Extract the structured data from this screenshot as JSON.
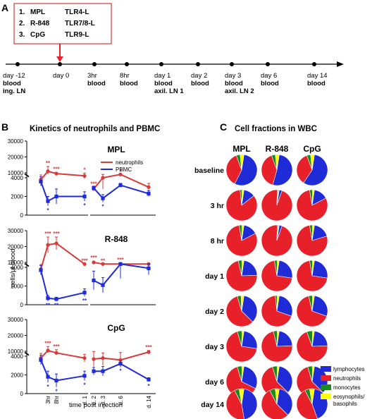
{
  "panels": {
    "a": "A",
    "b": "B",
    "c": "C"
  },
  "panel_a": {
    "agonists": [
      {
        "num": "1.",
        "drug": "MPL",
        "receptor": "TLR4-L"
      },
      {
        "num": "2.",
        "drug": "R-848",
        "receptor": "TLR7/8-L"
      },
      {
        "num": "3.",
        "drug": "CpG",
        "receptor": "TLR9-L"
      }
    ],
    "timeline": [
      {
        "time": "day -12",
        "sample": "blood",
        "extra": "ing. LN"
      },
      {
        "time": "day 0",
        "sample": "",
        "extra": ""
      },
      {
        "time": "3hr",
        "sample": "blood",
        "extra": ""
      },
      {
        "time": "8hr",
        "sample": "blood",
        "extra": ""
      },
      {
        "time": "day 1",
        "sample": "blood",
        "extra": "axil. LN 1"
      },
      {
        "time": "day 2",
        "sample": "blood",
        "extra": ""
      },
      {
        "time": "day 3",
        "sample": "blood",
        "extra": "axil. LN 2"
      },
      {
        "time": "day 6",
        "sample": "blood",
        "extra": ""
      },
      {
        "time": "day 14",
        "sample": "blood",
        "extra": ""
      }
    ]
  },
  "panel_b": {
    "title": "Kinetics of neutrophils and PBMC",
    "ylabel": "cells/µl blood",
    "xlabel": "time post injection",
    "legend": {
      "neutrophils": "neutrophils",
      "pbmc": "PBMC"
    },
    "colors": {
      "neutrophils": "#d93a3a",
      "pbmc": "#1f2bd6"
    }
  },
  "chart_data": [
    {
      "type": "line",
      "title": "MPL",
      "xlabel": "time post injection",
      "ylabel": "cells/µl blood",
      "x": [
        "base",
        "3hr",
        "8hr",
        "d. 1",
        "d. 2",
        "d. 3",
        "d. 6",
        "d. 14"
      ],
      "upper_ticks": [
        "10000",
        "20000",
        "30000"
      ],
      "lower_ticks": [
        "0",
        "2000",
        "4000"
      ],
      "series": [
        {
          "name": "neutrophils",
          "values": [
            3800,
            11000,
            9500,
            4200,
            2800,
            4000,
            5200,
            3000
          ],
          "errors": [
            500,
            3000,
            800,
            300,
            200,
            1200,
            1000,
            400
          ],
          "marks": [
            "",
            "**",
            "***",
            "*",
            "***",
            "",
            "*",
            ""
          ]
        },
        {
          "name": "PBMC",
          "values": [
            3600,
            1500,
            2000,
            2000,
            2900,
            1800,
            3200,
            2300
          ],
          "errors": [
            500,
            500,
            800,
            500,
            200,
            400,
            200,
            300
          ],
          "marks": [
            "",
            "*",
            "",
            "*",
            "",
            "*",
            "",
            ""
          ]
        }
      ]
    },
    {
      "type": "line",
      "title": "R-848",
      "xlabel": "time post injection",
      "ylabel": "cells/µl blood",
      "x": [
        "base",
        "3hr",
        "8hr",
        "d. 1",
        "d. 2",
        "d. 3",
        "d. 6",
        "d. 14"
      ],
      "upper_ticks": [
        "10000",
        "20000",
        "30000"
      ],
      "lower_ticks": [
        "0",
        "2000",
        "4000"
      ],
      "series": [
        {
          "name": "neutrophils",
          "values": [
            3800,
            21000,
            22000,
            8000,
            10000,
            7500,
            8000,
            5000
          ],
          "errors": [
            500,
            5000,
            4000,
            600,
            800,
            700,
            1500,
            800
          ],
          "marks": [
            "",
            "***",
            "***",
            "***",
            "***",
            "**",
            "***",
            ""
          ]
        },
        {
          "name": "PBMC",
          "values": [
            3700,
            700,
            600,
            1300,
            2600,
            2100,
            4800,
            3900
          ],
          "errors": [
            500,
            300,
            200,
            400,
            1000,
            800,
            2000,
            700
          ],
          "marks": [
            "",
            "**",
            "**",
            "**",
            "",
            "",
            "",
            ""
          ]
        }
      ]
    },
    {
      "type": "line",
      "title": "CpG",
      "xlabel": "time post injection",
      "ylabel": "cells/µl blood",
      "x": [
        "base",
        "3hr",
        "8hr",
        "d. 1",
        "d. 2",
        "d. 3",
        "d. 6",
        "d. 14"
      ],
      "upper_ticks": [
        "10000",
        "20000",
        "30000"
      ],
      "lower_ticks": [
        "0",
        "2000",
        "4000"
      ],
      "series": [
        {
          "name": "neutrophils",
          "values": [
            3800,
            10500,
            9000,
            3800,
            3700,
            3800,
            3600,
            9500
          ],
          "errors": [
            500,
            2500,
            2000,
            400,
            800,
            800,
            800,
            1000
          ],
          "marks": [
            "",
            "***",
            "***",
            "",
            "",
            "",
            "",
            "***"
          ]
        },
        {
          "name": "PBMC",
          "values": [
            3600,
            1800,
            1400,
            1900,
            2400,
            2400,
            3200,
            1500
          ],
          "errors": [
            500,
            600,
            700,
            500,
            400,
            500,
            300,
            200
          ],
          "marks": [
            "",
            "*",
            "*",
            "*",
            "",
            "",
            "*",
            "*"
          ]
        }
      ]
    },
    {
      "type": "pie",
      "title": "Cell fractions in WBC",
      "columns": [
        "MPL",
        "R-848",
        "CpG"
      ],
      "rows": [
        "baseline",
        "3 hr",
        "8 hr",
        "day 1",
        "day 2",
        "day 3",
        "day 6",
        "day 14"
      ],
      "categories": [
        "lymphocytes",
        "neutrophils",
        "monocytes",
        "eosynophils/ basophils"
      ],
      "colors": [
        "#1f2bd6",
        "#e8202a",
        "#1a8a1a",
        "#ffff00"
      ],
      "values": [
        [
          [
            55,
            37,
            4,
            4
          ],
          [
            52,
            40,
            4,
            4
          ],
          [
            57,
            35,
            4,
            4
          ]
        ],
        [
          [
            12,
            84,
            2,
            2
          ],
          [
            3,
            95,
            1,
            1
          ],
          [
            15,
            80,
            3,
            2
          ]
        ],
        [
          [
            15,
            80,
            3,
            2
          ],
          [
            3,
            95,
            1,
            1
          ],
          [
            18,
            77,
            3,
            2
          ]
        ],
        [
          [
            22,
            72,
            4,
            2
          ],
          [
            25,
            70,
            3,
            2
          ],
          [
            25,
            70,
            3,
            2
          ]
        ],
        [
          [
            35,
            58,
            4,
            3
          ],
          [
            28,
            68,
            2,
            2
          ],
          [
            28,
            66,
            4,
            2
          ]
        ],
        [
          [
            25,
            68,
            5,
            2
          ],
          [
            22,
            72,
            4,
            2
          ],
          [
            22,
            70,
            6,
            2
          ]
        ],
        [
          [
            30,
            63,
            5,
            2
          ],
          [
            35,
            58,
            5,
            2
          ],
          [
            35,
            58,
            5,
            2
          ]
        ],
        [
          [
            45,
            45,
            5,
            5
          ],
          [
            35,
            55,
            6,
            4
          ],
          [
            42,
            48,
            5,
            5
          ]
        ]
      ]
    }
  ]
}
